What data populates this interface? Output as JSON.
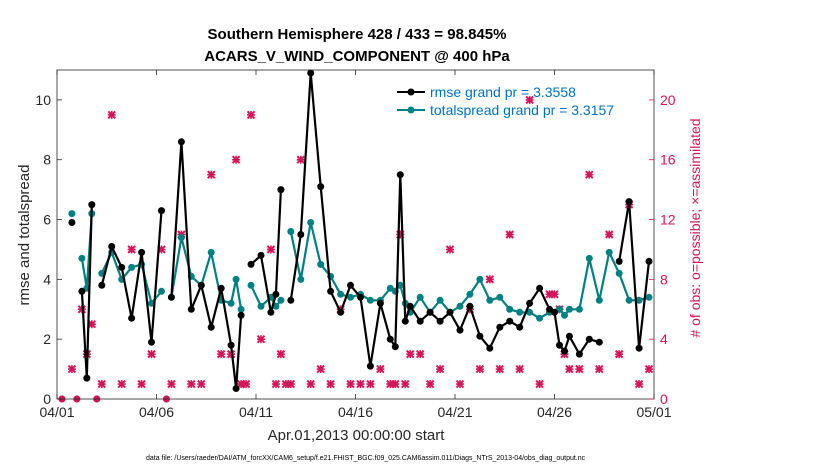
{
  "chart_data": {
    "type": "line",
    "title": "Southern Hemisphere 428 / 433 = 98.845%",
    "subtitle": "ACARS_V_WIND_COMPONENT @ 400 hPa",
    "xlabel": "Apr.01,2013 00:00:00 start",
    "ylabel": "rmse and totalspread",
    "y2label": "# of obs: o=possible; ×=assimilated",
    "footer": "data file: /Users/raeder/DAI/ATM_forcXX/CAM6_setup/f.e21.FHIST_BGC.f09_025.CAM6assim.011/Diags_NTrS_2013-04/obs_diag_output.nc",
    "xlim": [
      0,
      30
    ],
    "ylim": [
      0,
      11
    ],
    "y2lim": [
      0,
      22
    ],
    "x_tick_values": [
      0,
      5,
      10,
      15,
      20,
      25,
      30
    ],
    "x_tick_labels": [
      "04/01",
      "04/06",
      "04/11",
      "04/16",
      "04/21",
      "04/26",
      "05/01"
    ],
    "y_ticks": [
      0,
      2,
      4,
      6,
      8,
      10
    ],
    "y2_ticks": [
      0,
      4,
      8,
      12,
      16,
      20
    ],
    "legend_position": "top-right",
    "colors": {
      "rmse": "#000000",
      "spread": "#008080",
      "obs": "#d4145a",
      "legend_text": "#0072bd"
    },
    "series": [
      {
        "name": "rmse grand pr = 3.3558",
        "color": "#000000",
        "x": [
          0.25,
          0.75,
          1,
          1.25,
          1.5,
          1.75,
          2,
          2.25,
          2.75,
          3.25,
          3.75,
          4.25,
          4.75,
          5.25,
          5.5,
          5.75,
          6.25,
          6.75,
          7.25,
          7.75,
          8.25,
          8.75,
          9,
          9.25,
          9.5,
          9.75,
          10.25,
          10.75,
          11,
          11.25,
          11.5,
          11.75,
          12.25,
          12.75,
          13.25,
          13.75,
          14.25,
          14.75,
          15.25,
          15.75,
          16.25,
          16.75,
          17,
          17.25,
          17.5,
          17.75,
          18.25,
          18.75,
          19.25,
          19.75,
          20.25,
          20.75,
          21.25,
          21.75,
          22.25,
          22.75,
          23.25,
          23.75,
          24.25,
          24.75,
          25,
          25.25,
          25.5,
          25.75,
          26.25,
          26.75,
          27.25,
          27.75,
          28.25,
          28.75,
          29.25,
          29.75
        ],
        "y": [
          null,
          5.9,
          null,
          3.6,
          0.7,
          6.5,
          null,
          3.8,
          5.1,
          4.4,
          2.7,
          4.9,
          1.9,
          6.3,
          null,
          3.4,
          8.6,
          3.0,
          3.8,
          2.4,
          3.7,
          1.8,
          0.35,
          2.8,
          null,
          4.5,
          4.8,
          2.9,
          3.5,
          7.0,
          null,
          3.3,
          5.5,
          10.9,
          7.1,
          3.6,
          2.9,
          3.8,
          3.4,
          1.1,
          3.2,
          2.0,
          1.75,
          7.5,
          2.6,
          3.1,
          2.6,
          2.9,
          2.6,
          2.9,
          2.3,
          3.1,
          2.1,
          1.7,
          2.4,
          2.6,
          2.4,
          3.2,
          3.7,
          3.0,
          2.9,
          1.8,
          1.6,
          2.1,
          1.5,
          2.0,
          1.9,
          null,
          4.6,
          6.6,
          1.7,
          4.6
        ]
      },
      {
        "name": "totalspread grand pr = 3.3157",
        "color": "#008080",
        "x": [
          0.25,
          0.75,
          1,
          1.25,
          1.5,
          1.75,
          2,
          2.25,
          2.75,
          3.25,
          3.75,
          4.25,
          4.75,
          5.25,
          5.5,
          5.75,
          6.25,
          6.75,
          7.25,
          7.75,
          8.25,
          8.75,
          9,
          9.25,
          9.5,
          9.75,
          10.25,
          10.75,
          11,
          11.25,
          11.5,
          11.75,
          12.25,
          12.75,
          13.25,
          13.75,
          14.25,
          14.75,
          15.25,
          15.75,
          16.25,
          16.75,
          17,
          17.25,
          17.5,
          17.75,
          18.25,
          18.75,
          19.25,
          19.75,
          20.25,
          20.75,
          21.25,
          21.75,
          22.25,
          22.75,
          23.25,
          23.75,
          24.25,
          24.75,
          25,
          25.25,
          25.5,
          25.75,
          26.25,
          26.75,
          27.25,
          27.75,
          28.25,
          28.75,
          29.25,
          29.75
        ],
        "y": [
          null,
          6.2,
          null,
          4.7,
          3.7,
          6.2,
          null,
          4.2,
          4.9,
          4.0,
          4.4,
          4.5,
          3.2,
          3.6,
          null,
          3.4,
          5.4,
          4.1,
          3.8,
          4.9,
          3.3,
          3.2,
          4.0,
          3.0,
          null,
          3.8,
          3.1,
          3.4,
          3.1,
          3.3,
          null,
          5.6,
          4.0,
          5.9,
          4.5,
          4.1,
          3.5,
          3.4,
          3.5,
          3.3,
          3.3,
          3.7,
          3.6,
          3.8,
          3.2,
          2.9,
          3.4,
          2.9,
          3.3,
          2.9,
          3.1,
          3.5,
          4.0,
          3.3,
          3.4,
          3.0,
          2.9,
          2.9,
          2.7,
          2.9,
          2.9,
          3.0,
          2.8,
          3.0,
          3.0,
          4.7,
          3.3,
          4.9,
          4.2,
          3.3,
          3.3,
          3.4
        ]
      }
    ],
    "obs_counts": {
      "x": [
        0.25,
        0.75,
        1,
        1.25,
        1.5,
        1.75,
        2,
        2.25,
        2.75,
        3.25,
        3.75,
        4.25,
        4.75,
        5.25,
        5.5,
        5.75,
        6.25,
        6.75,
        7.25,
        7.75,
        8.25,
        8.75,
        9,
        9.25,
        9.5,
        9.75,
        10.25,
        10.75,
        11,
        11.25,
        11.5,
        11.75,
        12.25,
        12.75,
        13.25,
        13.75,
        14.25,
        14.75,
        15.25,
        15.75,
        16.25,
        16.75,
        17,
        17.25,
        17.5,
        17.75,
        18.25,
        18.75,
        19.25,
        19.75,
        20.25,
        20.75,
        21.25,
        21.75,
        22.25,
        22.75,
        23.25,
        23.75,
        24.25,
        24.75,
        25,
        25.25,
        25.5,
        25.75,
        26.25,
        26.75,
        27.25,
        27.75,
        28.25,
        28.75,
        29.25,
        29.75
      ],
      "possible": [
        0,
        2,
        0,
        6,
        3,
        5,
        0,
        1,
        19,
        1,
        10,
        1,
        3,
        10,
        0,
        1,
        11,
        1,
        1,
        15,
        3,
        3,
        16,
        1,
        1,
        19,
        4,
        10,
        1,
        3,
        1,
        1,
        16,
        1,
        2,
        1,
        6,
        1,
        1,
        1,
        2,
        1,
        1,
        11,
        1,
        3,
        3,
        1,
        2,
        10,
        1,
        6,
        2,
        8,
        2,
        11,
        2,
        20,
        1,
        7,
        7,
        6,
        3,
        2,
        2,
        15,
        2,
        11,
        3,
        13,
        1,
        2
      ]
    }
  }
}
